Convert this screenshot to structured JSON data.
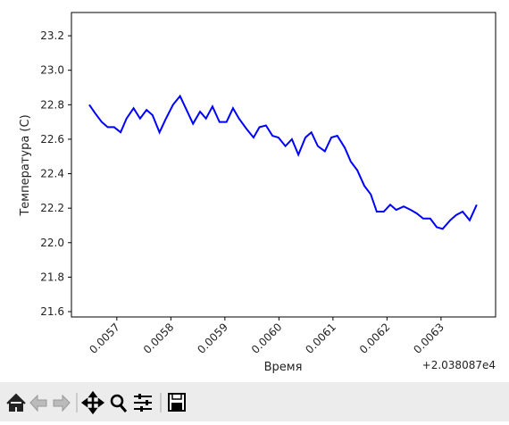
{
  "chart_data": {
    "type": "line",
    "x_label": "Время",
    "y_label": "Температура (C)",
    "x_offset": "+2.038087e4",
    "x": [
      0.005649,
      0.00566,
      0.005672,
      0.005683,
      0.005695,
      0.005707,
      0.005718,
      0.005731,
      0.005743,
      0.005755,
      0.005766,
      0.005779,
      0.005791,
      0.005804,
      0.005817,
      0.005829,
      0.005841,
      0.005854,
      0.005865,
      0.005877,
      0.00589,
      0.005903,
      0.005915,
      0.005926,
      0.00594,
      0.005953,
      0.005964,
      0.005976,
      0.005988,
      0.005999,
      0.006012,
      0.006024,
      0.006036,
      0.006049,
      0.00606,
      0.006072,
      0.006085,
      0.006097,
      0.006108,
      0.006122,
      0.006133,
      0.006145,
      0.006158,
      0.00617,
      0.006181,
      0.006194,
      0.006206,
      0.006217,
      0.006231,
      0.006244,
      0.006255,
      0.006267,
      0.00628,
      0.006292,
      0.006303,
      0.006317,
      0.006328,
      0.00634,
      0.006353,
      0.006366
    ],
    "series": [
      {
        "color": "#0000ff",
        "values": [
          22.8,
          22.75,
          22.7,
          22.67,
          22.67,
          22.64,
          22.72,
          22.78,
          22.72,
          22.77,
          22.74,
          22.64,
          22.72,
          22.8,
          22.85,
          22.77,
          22.69,
          22.76,
          22.72,
          22.79,
          22.7,
          22.7,
          22.78,
          22.72,
          22.66,
          22.61,
          22.67,
          22.68,
          22.62,
          22.61,
          22.56,
          22.6,
          22.51,
          22.61,
          22.64,
          22.56,
          22.53,
          22.61,
          22.62,
          22.55,
          22.47,
          22.42,
          22.33,
          22.28,
          22.18,
          22.18,
          22.22,
          22.19,
          22.21,
          22.19,
          22.17,
          22.14,
          22.14,
          22.09,
          22.08,
          22.13,
          22.16,
          22.18,
          22.13,
          22.22
        ]
      }
    ],
    "xlim": [
      0.005616,
      0.006401
    ],
    "xticks": [
      0.0057,
      0.0058,
      0.0059,
      {
        "value": 0.006,
        "label": "0.0060"
      },
      0.0061,
      0.0062,
      0.0063
    ],
    "ylim": [
      21.569,
      23.335
    ],
    "yticks": [
      21.6,
      21.8,
      {
        "value": 22,
        "label": "22.0"
      },
      22.2,
      22.4,
      22.6,
      22.8,
      {
        "value": 23,
        "label": "23.0"
      },
      23.2
    ],
    "grid": false
  }
}
